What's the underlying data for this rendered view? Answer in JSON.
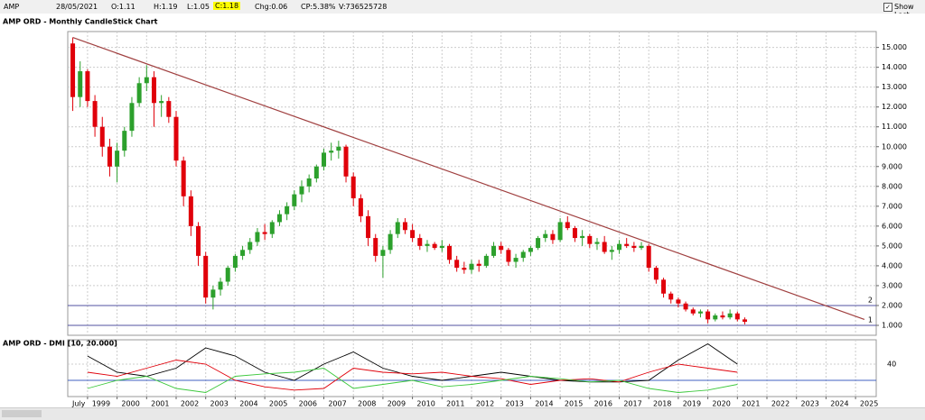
{
  "toolbar": {
    "symbol": "AMP",
    "date": "28/05/2021",
    "open": "O:1.11",
    "high": "H:1.19",
    "low": "L:1.05",
    "close": "C:1.18",
    "change": "Chg:0.06",
    "change_pct": "CP:5.38%",
    "volume": "V:736525728",
    "show_last": "Show Last"
  },
  "chart_data": [
    {
      "type": "candlestick",
      "title": "AMP ORD - Monthly CandleStick Chart",
      "up_color": "#2ca02c",
      "down_color": "#e0000a",
      "grid": true,
      "x": [
        1998.5,
        1998.75,
        1999,
        1999.25,
        1999.5,
        1999.75,
        2000,
        2000.25,
        2000.5,
        2000.75,
        2001,
        2001.25,
        2001.5,
        2001.75,
        2002,
        2002.25,
        2002.5,
        2002.75,
        2003,
        2003.25,
        2003.5,
        2003.75,
        2004,
        2004.25,
        2004.5,
        2004.75,
        2005,
        2005.25,
        2005.5,
        2005.75,
        2006,
        2006.25,
        2006.5,
        2006.75,
        2007,
        2007.25,
        2007.5,
        2007.75,
        2008,
        2008.25,
        2008.5,
        2008.75,
        2009,
        2009.25,
        2009.5,
        2009.75,
        2010,
        2010.25,
        2010.5,
        2010.75,
        2011,
        2011.25,
        2011.5,
        2011.75,
        2012,
        2012.25,
        2012.5,
        2012.75,
        2013,
        2013.25,
        2013.5,
        2013.75,
        2014,
        2014.25,
        2014.5,
        2014.75,
        2015,
        2015.25,
        2015.5,
        2015.75,
        2016,
        2016.25,
        2016.5,
        2016.75,
        2017,
        2017.25,
        2017.5,
        2017.75,
        2018,
        2018.25,
        2018.5,
        2018.75,
        2019,
        2019.25,
        2019.5,
        2019.75,
        2020,
        2020.25,
        2020.5,
        2020.75,
        2021,
        2021.25
      ],
      "open": [
        15.2,
        12.5,
        13.8,
        12.3,
        11.0,
        10.0,
        9.0,
        9.8,
        10.8,
        12.2,
        13.2,
        13.5,
        12.2,
        12.3,
        11.5,
        9.3,
        7.5,
        6.0,
        4.5,
        2.4,
        2.8,
        3.2,
        3.9,
        4.5,
        4.8,
        5.2,
        5.7,
        5.6,
        6.2,
        6.6,
        7.0,
        7.6,
        8.0,
        8.4,
        9.0,
        9.7,
        9.8,
        10.0,
        8.5,
        7.4,
        6.5,
        5.4,
        4.5,
        4.8,
        5.6,
        6.2,
        5.8,
        5.4,
        5.0,
        5.1,
        4.9,
        5.0,
        4.3,
        3.9,
        3.8,
        4.1,
        4.0,
        4.5,
        5.0,
        4.8,
        4.2,
        4.4,
        4.7,
        4.9,
        5.4,
        5.6,
        5.3,
        6.2,
        5.9,
        5.4,
        5.5,
        5.1,
        5.2,
        4.7,
        4.8,
        5.1,
        5.0,
        4.9,
        5.0,
        3.9,
        3.3,
        2.6,
        2.3,
        2.1,
        1.8,
        1.6,
        1.7,
        1.3,
        1.5,
        1.4,
        1.6,
        1.3
      ],
      "high": [
        15.5,
        14.3,
        13.9,
        12.6,
        11.5,
        10.4,
        10.2,
        11.0,
        12.5,
        13.5,
        14.1,
        13.8,
        12.6,
        12.5,
        11.8,
        9.5,
        7.8,
        6.2,
        4.7,
        3.0,
        3.4,
        4.0,
        4.6,
        5.0,
        5.4,
        5.9,
        6.1,
        6.3,
        6.8,
        7.2,
        7.8,
        8.3,
        8.6,
        9.1,
        9.9,
        10.2,
        10.3,
        10.1,
        8.7,
        7.6,
        6.8,
        5.6,
        5.0,
        5.8,
        6.4,
        6.4,
        6.1,
        5.6,
        5.3,
        5.2,
        5.3,
        5.1,
        4.5,
        4.2,
        4.3,
        4.3,
        4.6,
        5.2,
        5.2,
        4.9,
        4.6,
        4.8,
        5.0,
        5.5,
        5.8,
        5.8,
        6.4,
        6.5,
        6.0,
        5.8,
        5.6,
        5.4,
        5.5,
        5.0,
        5.3,
        5.4,
        5.2,
        5.2,
        5.1,
        4.0,
        3.4,
        2.7,
        2.4,
        2.2,
        1.9,
        1.8,
        1.8,
        1.6,
        1.7,
        1.8,
        1.7,
        1.4
      ],
      "low": [
        11.8,
        12.0,
        12.0,
        10.5,
        9.5,
        8.5,
        8.2,
        9.5,
        10.5,
        12.0,
        12.8,
        11.0,
        11.5,
        11.2,
        9.0,
        7.0,
        5.5,
        4.0,
        2.1,
        1.8,
        2.5,
        3.0,
        3.7,
        4.3,
        4.6,
        5.0,
        5.3,
        5.4,
        6.0,
        6.3,
        6.8,
        7.2,
        7.7,
        8.2,
        8.8,
        9.3,
        9.4,
        8.2,
        7.0,
        6.2,
        5.0,
        4.2,
        3.4,
        4.6,
        5.4,
        5.6,
        5.2,
        4.8,
        4.7,
        4.8,
        4.7,
        4.1,
        3.7,
        3.6,
        3.6,
        3.7,
        3.9,
        4.4,
        4.6,
        4.0,
        3.9,
        4.2,
        4.5,
        4.8,
        5.2,
        5.1,
        5.2,
        5.8,
        5.2,
        5.0,
        4.9,
        4.8,
        4.6,
        4.3,
        4.6,
        4.9,
        4.7,
        4.8,
        3.7,
        3.1,
        2.4,
        2.1,
        1.9,
        1.7,
        1.5,
        1.4,
        1.1,
        1.2,
        1.3,
        1.3,
        1.2,
        1.05
      ],
      "close": [
        12.5,
        13.8,
        12.3,
        11.0,
        10.0,
        9.0,
        9.8,
        10.8,
        12.2,
        13.2,
        13.5,
        12.2,
        12.3,
        11.5,
        9.3,
        7.5,
        6.0,
        4.5,
        2.4,
        2.8,
        3.2,
        3.9,
        4.5,
        4.8,
        5.2,
        5.7,
        5.6,
        6.2,
        6.6,
        7.0,
        7.6,
        8.0,
        8.4,
        9.0,
        9.7,
        9.8,
        10.0,
        8.5,
        7.4,
        6.5,
        5.4,
        4.5,
        4.8,
        5.6,
        6.2,
        5.8,
        5.4,
        5.0,
        5.1,
        4.9,
        5.0,
        4.3,
        3.9,
        3.8,
        4.1,
        4.0,
        4.5,
        5.0,
        4.8,
        4.2,
        4.4,
        4.7,
        4.9,
        5.4,
        5.6,
        5.3,
        6.2,
        5.9,
        5.4,
        5.5,
        5.1,
        5.2,
        4.7,
        4.8,
        5.1,
        5.0,
        4.9,
        5.0,
        3.9,
        3.3,
        2.6,
        2.3,
        2.1,
        1.8,
        1.6,
        1.7,
        1.3,
        1.5,
        1.4,
        1.6,
        1.3,
        1.18
      ],
      "xlim": [
        1998.33,
        2025.7
      ],
      "xticks": [
        1999,
        2000,
        2001,
        2002,
        2003,
        2004,
        2005,
        2006,
        2007,
        2008,
        2009,
        2010,
        2011,
        2012,
        2013,
        2014,
        2015,
        2016,
        2017,
        2018,
        2019,
        2020,
        2021,
        2022,
        2023,
        2024,
        2025
      ],
      "ylim": [
        0.5,
        15.8
      ],
      "yticks": [
        {
          "value": 1,
          "label": "1.000"
        },
        {
          "value": 2,
          "label": "2.000"
        },
        {
          "value": 3,
          "label": "3.000"
        },
        {
          "value": 4,
          "label": "4.000"
        },
        {
          "value": 5,
          "label": "5.000"
        },
        {
          "value": 6,
          "label": "6.000"
        },
        {
          "value": 7,
          "label": "7.000"
        },
        {
          "value": 8,
          "label": "8.000"
        },
        {
          "value": 9,
          "label": "9.000"
        },
        {
          "value": 10,
          "label": "10.000"
        },
        {
          "value": 11,
          "label": "11.000"
        },
        {
          "value": 12,
          "label": "12.000"
        },
        {
          "value": 13,
          "label": "13.000"
        },
        {
          "value": 14,
          "label": "14.000"
        },
        {
          "value": 15,
          "label": "15.000"
        }
      ],
      "trendline": {
        "color": "#a04040",
        "x": [
          1998.5,
          2025.3
        ],
        "y": [
          15.5,
          1.3
        ]
      },
      "hlines": [
        {
          "value": 2,
          "label": "2",
          "color": "#5050a0"
        },
        {
          "value": 1,
          "label": "1",
          "color": "#5050a0"
        }
      ]
    },
    {
      "type": "line",
      "title": "AMP ORD - DMI [10, 20.000]",
      "annotation": "July",
      "grid": true,
      "x": [
        1999,
        2000,
        2001,
        2002,
        2003,
        2004,
        2005,
        2006,
        2007,
        2008,
        2009,
        2010,
        2011,
        2012,
        2013,
        2014,
        2015,
        2016,
        2017,
        2018,
        2019,
        2020,
        2021
      ],
      "series": [
        {
          "color": "#000000",
          "values": [
            50,
            30,
            25,
            35,
            60,
            50,
            30,
            20,
            40,
            55,
            35,
            25,
            20,
            25,
            30,
            25,
            20,
            18,
            18,
            20,
            45,
            65,
            40
          ]
        },
        {
          "color": "#e0000a",
          "values": [
            30,
            25,
            35,
            45,
            40,
            20,
            12,
            8,
            10,
            35,
            30,
            28,
            30,
            25,
            22,
            15,
            20,
            22,
            18,
            30,
            40,
            35,
            30
          ]
        },
        {
          "color": "#3cc83c",
          "values": [
            10,
            20,
            25,
            10,
            5,
            25,
            28,
            30,
            35,
            10,
            15,
            20,
            12,
            15,
            20,
            25,
            22,
            18,
            20,
            10,
            5,
            8,
            15
          ]
        }
      ],
      "hlines": [
        {
          "value": 20,
          "color": "#4060c0"
        }
      ],
      "xlim": [
        1998.33,
        2025.7
      ],
      "xticks": [
        1999,
        2000,
        2001,
        2002,
        2003,
        2004,
        2005,
        2006,
        2007,
        2008,
        2009,
        2010,
        2011,
        2012,
        2013,
        2014,
        2015,
        2016,
        2017,
        2018,
        2019,
        2020,
        2021,
        2022,
        2023,
        2024,
        2025
      ],
      "ylim": [
        0,
        70
      ],
      "yticks": [
        40
      ]
    }
  ]
}
